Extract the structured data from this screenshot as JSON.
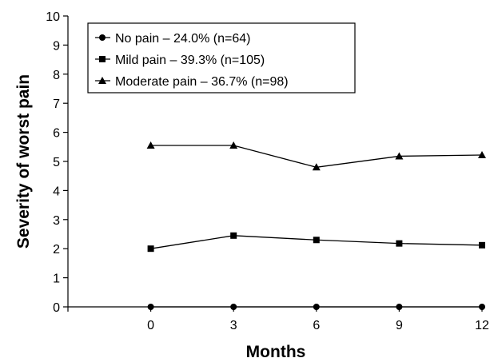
{
  "chart_data": {
    "type": "line",
    "x": [
      0,
      3,
      6,
      9,
      12
    ],
    "xlabel": "Months",
    "ylabel": "Severity of worst pain",
    "xlim": [
      -3,
      12
    ],
    "ylim": [
      0,
      10
    ],
    "x_ticks": [
      "0",
      "3",
      "6",
      "9",
      "12"
    ],
    "y_ticks": [
      "0",
      "1",
      "2",
      "3",
      "4",
      "5",
      "6",
      "7",
      "8",
      "9",
      "10"
    ],
    "grid": false,
    "legend_position": "top-left",
    "series": [
      {
        "name": "No pain – 24.0% (n=64)",
        "marker": "circle",
        "color": "#000000",
        "values": [
          0,
          0,
          0,
          0,
          0
        ]
      },
      {
        "name": "Mild pain – 39.3% (n=105)",
        "marker": "square",
        "color": "#000000",
        "values": [
          2.0,
          2.45,
          2.3,
          2.18,
          2.12
        ]
      },
      {
        "name": "Moderate pain – 36.7% (n=98)",
        "marker": "triangle",
        "color": "#000000",
        "values": [
          5.55,
          5.55,
          4.8,
          5.18,
          5.22
        ]
      }
    ]
  }
}
